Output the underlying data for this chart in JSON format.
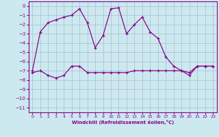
{
  "xlabel": "Windchill (Refroidissement éolien,°C)",
  "bg_color": "#cce9f0",
  "grid_color": "#aabbcc",
  "line_color": "#880088",
  "xlim": [
    -0.5,
    23.5
  ],
  "ylim": [
    -11.5,
    0.5
  ],
  "yticks": [
    0,
    -1,
    -2,
    -3,
    -4,
    -5,
    -6,
    -7,
    -8,
    -9,
    -10,
    -11
  ],
  "xticks": [
    0,
    1,
    2,
    3,
    4,
    5,
    6,
    7,
    8,
    9,
    10,
    11,
    12,
    13,
    14,
    15,
    16,
    17,
    18,
    19,
    20,
    21,
    22,
    23
  ],
  "line1_x": [
    0,
    1,
    2,
    3,
    4,
    5,
    6,
    7,
    8,
    9,
    10,
    11,
    12,
    13,
    14,
    15,
    16,
    17,
    18,
    19,
    20,
    21,
    22,
    23
  ],
  "line1_y": [
    -7.0,
    -2.8,
    -1.8,
    -1.5,
    -1.2,
    -1.0,
    -0.3,
    -1.8,
    -4.5,
    -3.2,
    -0.3,
    -0.2,
    -3.0,
    -2.0,
    -1.2,
    -2.8,
    -3.5,
    -5.5,
    -6.5,
    -7.0,
    -7.2,
    -6.5,
    -6.5,
    -6.5
  ],
  "line2_x": [
    0,
    1,
    2,
    3,
    4,
    5,
    6,
    7,
    8,
    9,
    10,
    11,
    12,
    13,
    14,
    15,
    16,
    17,
    18,
    19,
    20,
    21,
    22,
    23
  ],
  "line2_y": [
    -7.2,
    -7.0,
    -7.5,
    -7.8,
    -7.5,
    -6.5,
    -6.5,
    -7.2,
    -7.2,
    -7.2,
    -7.2,
    -7.2,
    -7.2,
    -7.0,
    -7.0,
    -7.0,
    -7.0,
    -7.0,
    -7.0,
    -7.0,
    -7.5,
    -6.5,
    -6.5,
    -6.5
  ],
  "marker": "+"
}
